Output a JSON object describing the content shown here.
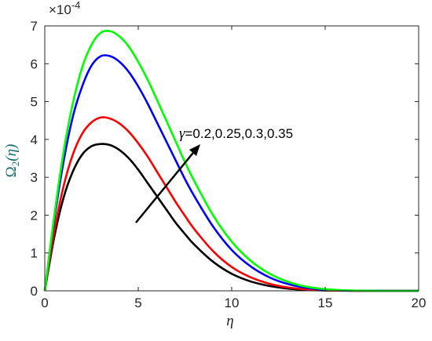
{
  "chart_data": {
    "type": "line",
    "xlabel": "η",
    "ylabel": {
      "main": "Ω",
      "sub": "2",
      "arg": "(η)"
    },
    "xlim": [
      0,
      20
    ],
    "ylim": [
      0,
      7
    ],
    "xticks": [
      "0",
      "5",
      "10",
      "15",
      "20"
    ],
    "yticks": [
      "0",
      "1",
      "2",
      "3",
      "4",
      "5",
      "6",
      "7"
    ],
    "y_multiplier": {
      "base": "×10",
      "exp": "-4"
    },
    "grid": false,
    "legend": "none",
    "annotation": {
      "symbol": "γ",
      "text": "=0.2,0.25,0.3,0.35"
    },
    "x": [
      0,
      0.5,
      1,
      1.5,
      2,
      2.5,
      3,
      3.5,
      4,
      4.5,
      5,
      5.5,
      6,
      6.5,
      7,
      7.5,
      8,
      9,
      10,
      11,
      12,
      13,
      14,
      15,
      16,
      17,
      18,
      19,
      20
    ],
    "series": [
      {
        "color": "#000000",
        "values": [
          0,
          1.4,
          2.45,
          3.15,
          3.6,
          3.82,
          3.88,
          3.85,
          3.72,
          3.5,
          3.2,
          2.85,
          2.5,
          2.15,
          1.8,
          1.5,
          1.22,
          0.77,
          0.45,
          0.25,
          0.13,
          0.06,
          0.025,
          0.01,
          0.003,
          0.001,
          0,
          0,
          0
        ]
      },
      {
        "color": "#ff0000",
        "values": [
          0,
          1.55,
          2.75,
          3.6,
          4.15,
          4.45,
          4.58,
          4.55,
          4.42,
          4.2,
          3.9,
          3.55,
          3.15,
          2.75,
          2.35,
          1.98,
          1.63,
          1.05,
          0.63,
          0.36,
          0.19,
          0.09,
          0.04,
          0.015,
          0.005,
          0.001,
          0,
          0,
          0
        ]
      },
      {
        "color": "#0000ff",
        "values": [
          0,
          1.85,
          3.4,
          4.6,
          5.4,
          5.95,
          6.2,
          6.2,
          6.05,
          5.78,
          5.4,
          4.95,
          4.45,
          3.95,
          3.45,
          2.95,
          2.5,
          1.7,
          1.08,
          0.65,
          0.36,
          0.18,
          0.08,
          0.03,
          0.01,
          0.003,
          0,
          0,
          0
        ]
      },
      {
        "color": "#00ff00",
        "values": [
          0,
          1.95,
          3.65,
          4.95,
          5.9,
          6.5,
          6.82,
          6.86,
          6.72,
          6.45,
          6.05,
          5.58,
          5.05,
          4.5,
          3.95,
          3.4,
          2.9,
          2.0,
          1.3,
          0.8,
          0.46,
          0.24,
          0.11,
          0.045,
          0.015,
          0.004,
          0,
          0,
          0
        ]
      }
    ]
  }
}
